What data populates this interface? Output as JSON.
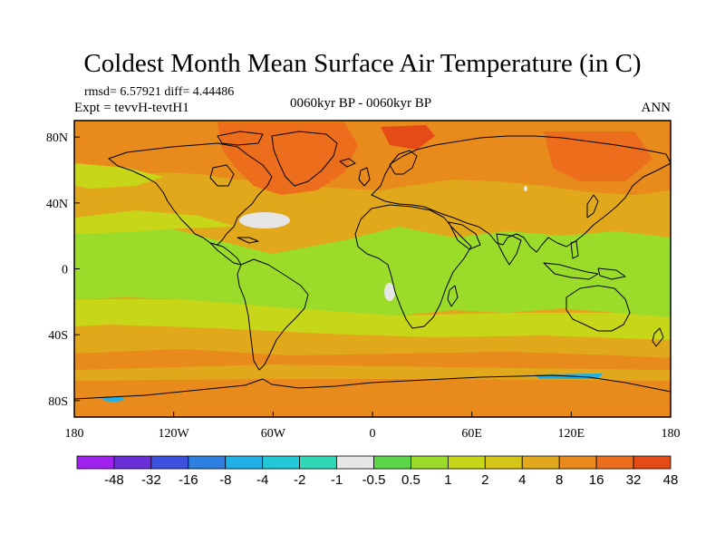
{
  "title": "Coldest Month Mean Surface Air Temperature (in C)",
  "stats": {
    "rmsd": "rmsd= 6.57921",
    "diff": "diff= 4.44486"
  },
  "experiment": "Expt = tevvH-tevtH1",
  "period": "0060kyr BP - 0060kyr BP",
  "season": "ANN",
  "axes": {
    "x_ticks": [
      {
        "value": -180,
        "label": "180"
      },
      {
        "value": -120,
        "label": "120W"
      },
      {
        "value": -60,
        "label": "60W"
      },
      {
        "value": 0,
        "label": "0"
      },
      {
        "value": 60,
        "label": "60E"
      },
      {
        "value": 120,
        "label": "120E"
      },
      {
        "value": 180,
        "label": "180"
      }
    ],
    "y_ticks": [
      {
        "value": 80,
        "label": "80N"
      },
      {
        "value": 40,
        "label": "40N"
      },
      {
        "value": 0,
        "label": "0"
      },
      {
        "value": -40,
        "label": "40S"
      },
      {
        "value": -80,
        "label": "80S"
      }
    ],
    "lon_range": [
      -180,
      180
    ],
    "lat_range": [
      -90,
      90
    ]
  },
  "colorbar": {
    "colors": [
      "#a020f0",
      "#6a2fd9",
      "#3d51e0",
      "#2e7fe0",
      "#1fb0e6",
      "#22c8d6",
      "#2fd9b8",
      "#e6e6e6",
      "#5fd64a",
      "#9bdc2a",
      "#c8d619",
      "#d6c516",
      "#e0a81a",
      "#e88a1c",
      "#ec6d1c",
      "#e44b16"
    ],
    "labels": [
      "-48",
      "-32",
      "-16",
      "-8",
      "-4",
      "-2",
      "-1",
      "-0.5",
      "0.5",
      "1",
      "2",
      "4",
      "8",
      "16",
      "32",
      "48"
    ]
  },
  "map_colors": {
    "neutral": "#e6e6e6",
    "green": "#9bdc2a",
    "yellow_green": "#c8d619",
    "yellow": "#d6c516",
    "light_orange": "#e0a81a",
    "orange": "#e88a1c",
    "dark_orange": "#ec6d1c",
    "red_orange": "#e44b16",
    "cyan": "#1fb0e6",
    "coast": "#000000"
  }
}
